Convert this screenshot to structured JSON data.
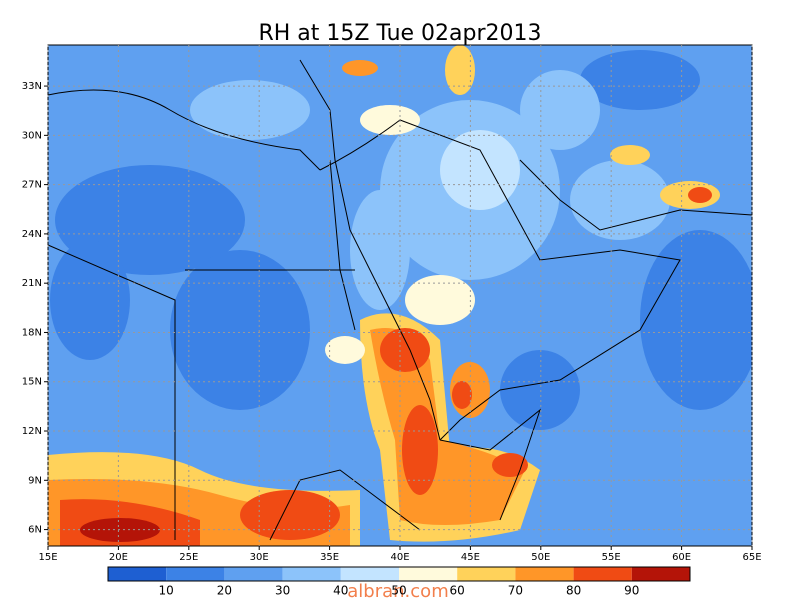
{
  "title": "RH at 15Z Tue 02apr2013",
  "map": {
    "xlim": [
      15,
      65
    ],
    "ylim": [
      5,
      35.5
    ],
    "xticks": [
      {
        "value": 15,
        "label": "15E"
      },
      {
        "value": 20,
        "label": "20E"
      },
      {
        "value": 25,
        "label": "25E"
      },
      {
        "value": 30,
        "label": "30E"
      },
      {
        "value": 35,
        "label": "35E"
      },
      {
        "value": 40,
        "label": "40E"
      },
      {
        "value": 45,
        "label": "45E"
      },
      {
        "value": 50,
        "label": "50E"
      },
      {
        "value": 55,
        "label": "55E"
      },
      {
        "value": 60,
        "label": "60E"
      },
      {
        "value": 65,
        "label": "65E"
      }
    ],
    "yticks": [
      {
        "value": 6,
        "label": "6N"
      },
      {
        "value": 9,
        "label": "9N"
      },
      {
        "value": 12,
        "label": "12N"
      },
      {
        "value": 15,
        "label": "15N"
      },
      {
        "value": 18,
        "label": "18N"
      },
      {
        "value": 21,
        "label": "21N"
      },
      {
        "value": 24,
        "label": "24N"
      },
      {
        "value": 27,
        "label": "27N"
      },
      {
        "value": 30,
        "label": "30N"
      },
      {
        "value": 33,
        "label": "33N"
      }
    ],
    "grid": true
  },
  "colorbar": {
    "levels": [
      10,
      20,
      30,
      40,
      50,
      60,
      70,
      80,
      90
    ],
    "colors": [
      "#1e5fd2",
      "#3c82e6",
      "#5fa0f0",
      "#8cc3fa",
      "#c3e4ff",
      "#fffadc",
      "#ffd25a",
      "#ff9628",
      "#f04b14",
      "#b41408"
    ]
  },
  "watermark": "albran.com"
}
